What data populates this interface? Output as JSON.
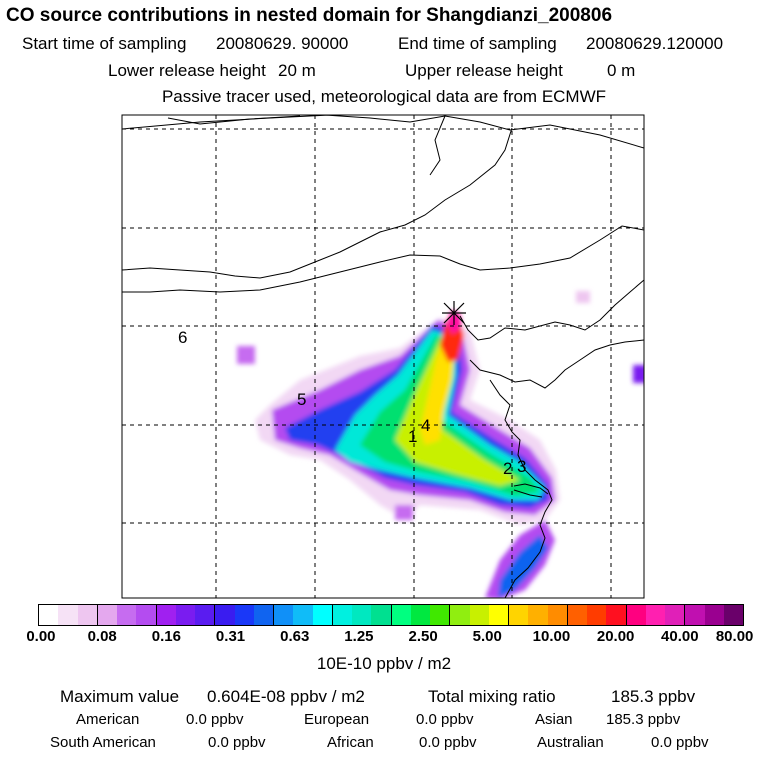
{
  "title": "CO  source contributions in nested domain for Shangdianzi_200806",
  "start_label": "Start time of sampling",
  "start_value": "20080629. 90000",
  "end_label": "End time of sampling",
  "end_value": "20080629.120000",
  "lower_label": "Lower release height",
  "lower_value": "20 m",
  "upper_label": "Upper release height",
  "upper_value": "0 m",
  "note": "Passive tracer used, meteorological data are from ECMWF",
  "map": {
    "region_labels": [
      "1",
      "2",
      "3",
      "4",
      "5",
      "6"
    ],
    "receptor": "Shangdianzi"
  },
  "colorbar": {
    "colors": [
      "#ffffff",
      "#f6e2f6",
      "#eec6f0",
      "#e4a8ee",
      "#c66cf0",
      "#b44cf0",
      "#a020f0",
      "#7a1cf0",
      "#5a1cf0",
      "#3a1cf0",
      "#1a38f8",
      "#1064f0",
      "#1090f8",
      "#10bcf8",
      "#00ffff",
      "#00f0e0",
      "#00e8c0",
      "#00e090",
      "#00ff80",
      "#00e840",
      "#40e800",
      "#90ee10",
      "#c8f000",
      "#ffff00",
      "#ffd400",
      "#ffb000",
      "#ff8c00",
      "#ff6000",
      "#ff3c00",
      "#ff1020",
      "#ff0080",
      "#ff20b0",
      "#e020b8",
      "#c010b0",
      "#9a0090",
      "#6a006a"
    ],
    "ticks": [
      "0.00",
      "0.08",
      "0.16",
      "0.31",
      "0.63",
      "1.25",
      "2.50",
      "5.00",
      "10.00",
      "20.00",
      "40.00",
      "80.00"
    ],
    "unit": "10E-10 ppbv / m2"
  },
  "stats": {
    "max_label": "Maximum value",
    "max_value": "0.604E-08 ppbv / m2",
    "total_label": "Total mixing ratio",
    "total_value": "185.3 ppbv",
    "american_label": "American",
    "american_value": "0.0 ppbv",
    "european_label": "European",
    "european_value": "0.0 ppbv",
    "asian_label": "Asian",
    "asian_value": "185.3 ppbv",
    "south_american_label": "South American",
    "south_american_value": "0.0 ppbv",
    "african_label": "African",
    "african_value": "0.0 ppbv",
    "australian_label": "Australian",
    "australian_value": "0.0 ppbv"
  }
}
